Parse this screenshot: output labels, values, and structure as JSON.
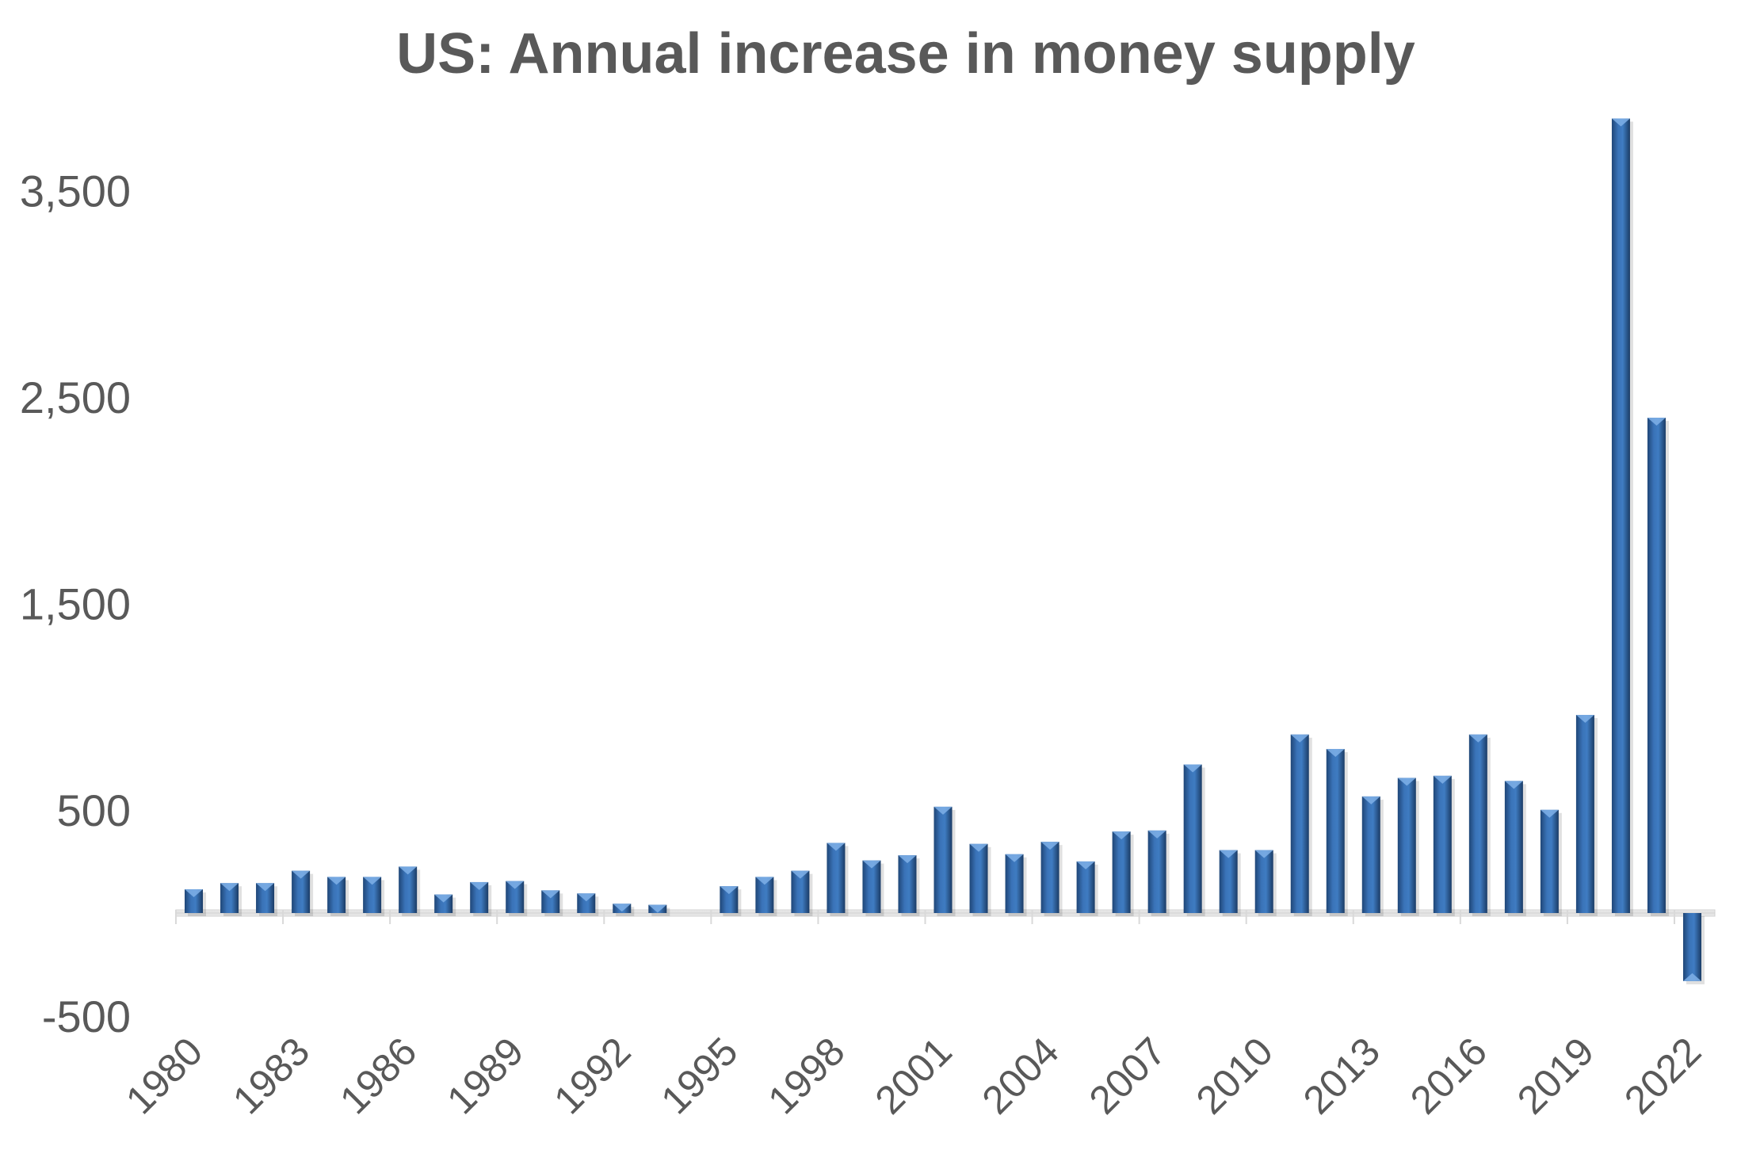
{
  "chart_data": {
    "type": "bar",
    "title": "US: Annual increase in money supply",
    "xlabel": "",
    "ylabel": "",
    "ylim": [
      -600,
      3900
    ],
    "y_ticks": [
      -500,
      500,
      1500,
      2500,
      3500
    ],
    "y_tick_labels": [
      "-500",
      "500",
      "1,500",
      "2,500",
      "3,500"
    ],
    "x_tick_labels": [
      "1980",
      "1983",
      "1986",
      "1989",
      "1992",
      "1995",
      "1998",
      "2001",
      "2004",
      "2007",
      "2010",
      "2013",
      "2016",
      "2019",
      "2022"
    ],
    "grid": false,
    "legend": "none",
    "bar_color": "#2e5f9a",
    "categories": [
      "1980",
      "1981",
      "1982",
      "1983",
      "1984",
      "1985",
      "1986",
      "1987",
      "1988",
      "1989",
      "1990",
      "1991",
      "1992",
      "1993",
      "1994",
      "1995",
      "1996",
      "1997",
      "1998",
      "1999",
      "2000",
      "2001",
      "2002",
      "2003",
      "2004",
      "2005",
      "2006",
      "2007",
      "2008",
      "2009",
      "2010",
      "2011",
      "2012",
      "2013",
      "2014",
      "2015",
      "2016",
      "2017",
      "2018",
      "2019",
      "2020",
      "2021",
      "2022"
    ],
    "values": [
      115,
      145,
      145,
      205,
      175,
      175,
      225,
      90,
      150,
      155,
      110,
      95,
      45,
      40,
      0,
      130,
      175,
      205,
      340,
      255,
      280,
      515,
      335,
      285,
      345,
      250,
      395,
      400,
      720,
      305,
      305,
      865,
      795,
      565,
      655,
      665,
      865,
      640,
      500,
      960,
      3850,
      2400,
      -330
    ]
  }
}
